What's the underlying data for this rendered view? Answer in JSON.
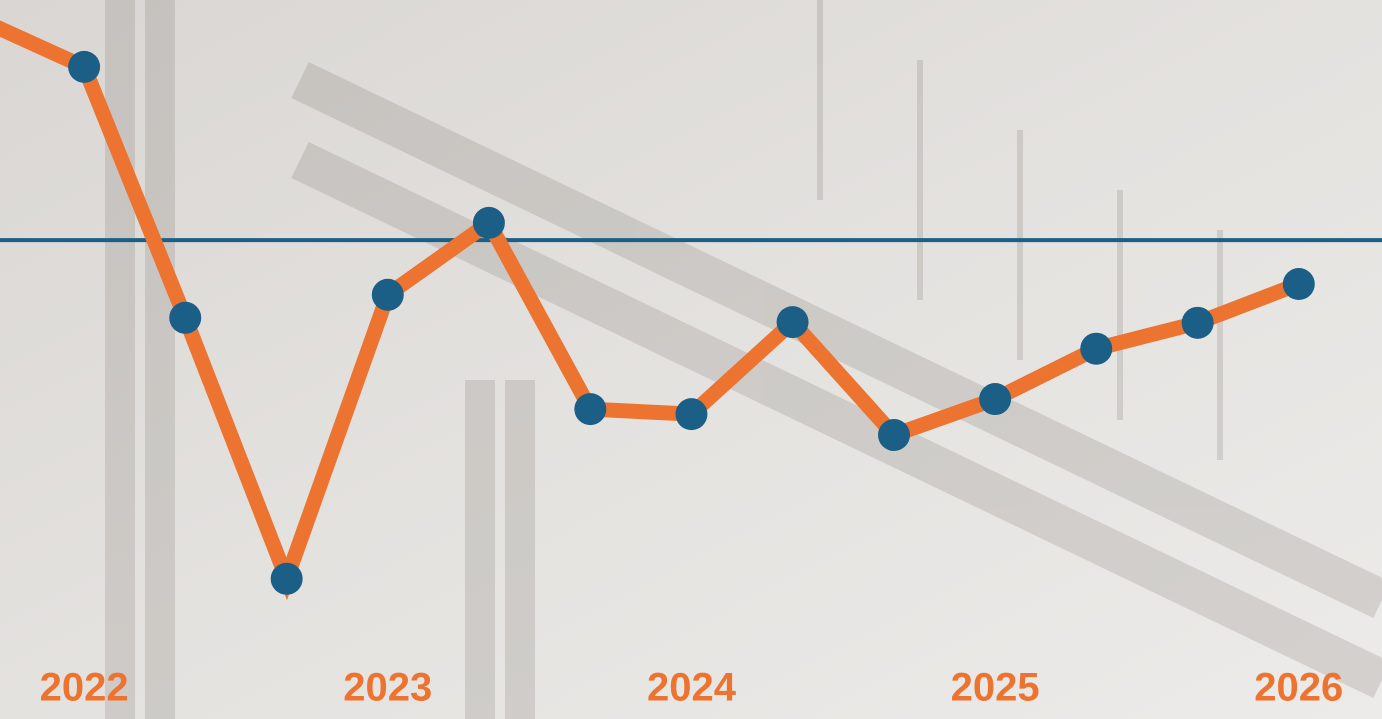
{
  "chart_data": {
    "type": "line",
    "x": [
      2021.667,
      2022,
      2022.333,
      2022.667,
      2023,
      2023.333,
      2023.667,
      2024,
      2024.333,
      2024.667,
      2025,
      2025.333,
      2025.667,
      2026
    ],
    "series": [
      {
        "color": "#ec7430",
        "marker_color": "#1b5e86",
        "values": [
          97.1,
          90.7,
          55.8,
          19.5,
          59.0,
          69.0,
          43.1,
          42.4,
          55.2,
          39.5,
          44.5,
          51.5,
          55.1,
          60.5
        ]
      }
    ],
    "reference_line": {
      "value": 66.6,
      "color": "#1b5e86"
    },
    "xlim": [
      2021.723,
      2026.274
    ],
    "ylim": [
      0,
      100
    ],
    "xticks": [
      2022,
      2023,
      2024,
      2025,
      2026
    ]
  }
}
